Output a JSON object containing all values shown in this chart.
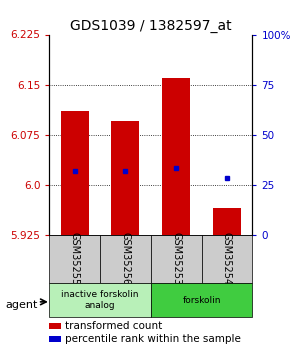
{
  "title": "GDS1039 / 1382597_at",
  "samples": [
    "GSM35255",
    "GSM35256",
    "GSM35253",
    "GSM35254"
  ],
  "bar_tops": [
    6.11,
    6.095,
    6.16,
    5.965
  ],
  "bar_bottoms": [
    5.925,
    5.925,
    5.925,
    5.925
  ],
  "blue_dots": [
    6.02,
    6.02,
    6.025,
    6.01
  ],
  "ylim": [
    5.925,
    6.225
  ],
  "ylim_right": [
    0,
    100
  ],
  "yticks_left": [
    5.925,
    6.0,
    6.075,
    6.15,
    6.225
  ],
  "yticks_right": [
    0,
    25,
    50,
    75,
    100
  ],
  "ytick_labels_right": [
    "0",
    "25",
    "50",
    "75",
    "100%"
  ],
  "grid_lines": [
    6.0,
    6.075,
    6.15
  ],
  "groups": [
    {
      "label": "inactive forskolin\nanalog",
      "samples": [
        0,
        1
      ],
      "color": "#b8f0b8"
    },
    {
      "label": "forskolin",
      "samples": [
        2,
        3
      ],
      "color": "#40cc40"
    }
  ],
  "bar_color": "#cc0000",
  "blue_color": "#0000cc",
  "bar_width": 0.55,
  "legend_items": [
    {
      "color": "#cc0000",
      "label": "transformed count"
    },
    {
      "color": "#0000cc",
      "label": "percentile rank within the sample"
    }
  ],
  "sample_box_color": "#cccccc",
  "title_fontsize": 10,
  "tick_fontsize": 7.5,
  "legend_fontsize": 7.5,
  "sample_fontsize": 7
}
